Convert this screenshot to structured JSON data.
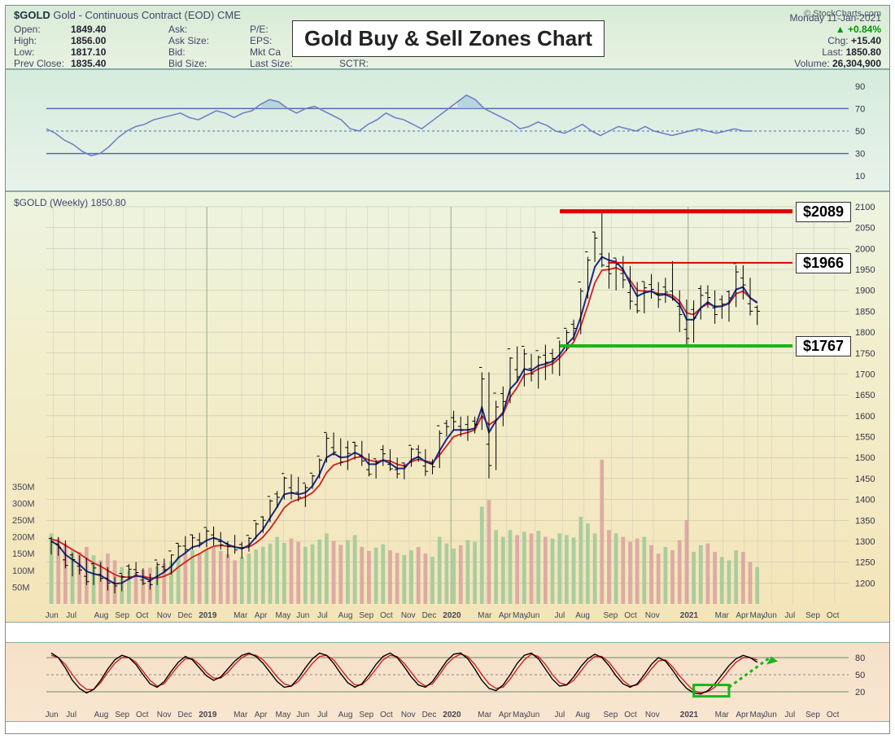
{
  "header": {
    "symbol": "$GOLD",
    "desc": "Gold - Continuous Contract (EOD)  CME",
    "credit": "© StockCharts.com",
    "date": "Monday  11-Jan-2021",
    "title": "Gold Buy & Sell Zones Chart",
    "open_lbl": "Open:",
    "open": "1849.40",
    "high_lbl": "High:",
    "high": "1856.00",
    "low_lbl": "Low:",
    "low": "1817.10",
    "prev_lbl": "Prev Close:",
    "prev": "1835.40",
    "ask_lbl": "Ask:",
    "asksz_lbl": "Ask Size:",
    "bid_lbl": "Bid:",
    "bidsz_lbl": "Bid Size:",
    "pe_lbl": "P/E:",
    "eps_lbl": "EPS:",
    "mktcap_lbl": "Mkt Ca",
    "lastsz_lbl": "Last Size:",
    "sctr_lbl": "SCTR:",
    "pct_arrow": "▲",
    "pct": "+0.84%",
    "chg_lbl": "Chg:",
    "chg": "+15.40",
    "last_lbl": "Last:",
    "last": "1850.80",
    "vol_lbl": "Volume:",
    "vol": "26,304,900"
  },
  "rsi": {
    "y_ticks": [
      10,
      30,
      50,
      70,
      90
    ],
    "upper_line": 70,
    "lower_line": 30,
    "mid_line": 50,
    "line_color": "#6a7cc8",
    "fill_color": "#9ec4d8",
    "values": [
      52,
      48,
      42,
      38,
      32,
      28,
      30,
      36,
      44,
      50,
      54,
      56,
      60,
      62,
      64,
      66,
      62,
      60,
      64,
      68,
      66,
      62,
      66,
      68,
      74,
      78,
      76,
      70,
      66,
      70,
      72,
      68,
      64,
      60,
      52,
      50,
      56,
      60,
      66,
      62,
      60,
      56,
      52,
      58,
      64,
      70,
      76,
      82,
      78,
      70,
      66,
      62,
      58,
      52,
      54,
      58,
      55,
      50,
      48,
      52,
      56,
      50,
      46,
      50,
      54,
      52,
      50,
      54,
      50,
      48,
      46,
      48,
      50,
      52,
      50,
      48,
      50,
      52,
      50,
      50
    ]
  },
  "price": {
    "subtitle": "$GOLD (Weekly) 1850.80",
    "y_min": 1150,
    "y_max": 2100,
    "y_step": 50,
    "vol_left_ticks": [
      50,
      100,
      150,
      200,
      250,
      300,
      350
    ],
    "vol_left_suffix": "M",
    "resist1": {
      "price": 2089,
      "color": "#e00000",
      "x1_pct": 64,
      "x2_pct": 93,
      "label": "$2089"
    },
    "resist2": {
      "price": 1966,
      "color": "#e00000",
      "x1_pct": 70,
      "x2_pct": 93,
      "label": "$1966"
    },
    "support": {
      "price": 1767,
      "color": "#1bb41b",
      "x1_pct": 64,
      "x2_pct": 93,
      "label": "$1767"
    },
    "ma_fast_color": "#1a2a8a",
    "ma_slow_color": "#d02020",
    "candle_color": "#000",
    "vol_up_color": "#9cc898",
    "vol_dn_color": "#d8a0a0",
    "ohlc": [
      [
        1310,
        1268,
        1298
      ],
      [
        1310,
        1265,
        1284
      ],
      [
        1302,
        1235,
        1242
      ],
      [
        1272,
        1216,
        1256
      ],
      [
        1266,
        1220,
        1231
      ],
      [
        1260,
        1195,
        1203
      ],
      [
        1245,
        1195,
        1236
      ],
      [
        1250,
        1203,
        1211
      ],
      [
        1238,
        1182,
        1200
      ],
      [
        1215,
        1175,
        1193
      ],
      [
        1220,
        1180,
        1215
      ],
      [
        1245,
        1208,
        1233
      ],
      [
        1250,
        1215,
        1225
      ],
      [
        1235,
        1195,
        1199
      ],
      [
        1222,
        1184,
        1196
      ],
      [
        1250,
        1195,
        1244
      ],
      [
        1258,
        1225,
        1232
      ],
      [
        1268,
        1220,
        1267
      ],
      [
        1295,
        1260,
        1288
      ],
      [
        1312,
        1270,
        1280
      ],
      [
        1316,
        1280,
        1308
      ],
      [
        1320,
        1285,
        1296
      ],
      [
        1330,
        1286,
        1324
      ],
      [
        1335,
        1290,
        1306
      ],
      [
        1322,
        1280,
        1291
      ],
      [
        1300,
        1260,
        1287
      ],
      [
        1315,
        1270,
        1279
      ],
      [
        1298,
        1258,
        1284
      ],
      [
        1310,
        1275,
        1307
      ],
      [
        1345,
        1305,
        1341
      ],
      [
        1360,
        1320,
        1350
      ],
      [
        1400,
        1345,
        1396
      ],
      [
        1420,
        1380,
        1405
      ],
      [
        1454,
        1400,
        1451
      ],
      [
        1460,
        1400,
        1416
      ],
      [
        1454,
        1395,
        1405
      ],
      [
        1436,
        1382,
        1428
      ],
      [
        1459,
        1425,
        1456
      ],
      [
        1498,
        1450,
        1494
      ],
      [
        1558,
        1488,
        1546
      ],
      [
        1560,
        1505,
        1513
      ],
      [
        1546,
        1480,
        1489
      ],
      [
        1540,
        1470,
        1510
      ],
      [
        1538,
        1495,
        1528
      ],
      [
        1540,
        1480,
        1492
      ],
      [
        1510,
        1455,
        1460
      ],
      [
        1495,
        1450,
        1488
      ],
      [
        1530,
        1480,
        1509
      ],
      [
        1520,
        1468,
        1473
      ],
      [
        1500,
        1450,
        1461
      ],
      [
        1488,
        1448,
        1479
      ],
      [
        1524,
        1478,
        1520
      ],
      [
        1530,
        1490,
        1512
      ],
      [
        1520,
        1456,
        1467
      ],
      [
        1496,
        1460,
        1478
      ],
      [
        1565,
        1475,
        1558
      ],
      [
        1590,
        1550,
        1574
      ],
      [
        1612,
        1565,
        1586
      ],
      [
        1598,
        1550,
        1565
      ],
      [
        1600,
        1540,
        1567
      ],
      [
        1598,
        1558,
        1579
      ],
      [
        1704,
        1566,
        1688
      ],
      [
        1704,
        1450,
        1481
      ],
      [
        1636,
        1470,
        1621
      ],
      [
        1670,
        1575,
        1634
      ],
      [
        1740,
        1630,
        1738
      ],
      [
        1766,
        1680,
        1693
      ],
      [
        1760,
        1670,
        1748
      ],
      [
        1748,
        1682,
        1700
      ],
      [
        1744,
        1665,
        1740
      ],
      [
        1770,
        1685,
        1728
      ],
      [
        1760,
        1700,
        1737
      ],
      [
        1780,
        1695,
        1769
      ],
      [
        1806,
        1755,
        1799
      ],
      [
        1830,
        1780,
        1809
      ],
      [
        1905,
        1795,
        1898
      ],
      [
        1980,
        1880,
        1972
      ],
      [
        2040,
        1968,
        2025
      ],
      [
        2089,
        1955,
        1960
      ],
      [
        1990,
        1904,
        1940
      ],
      [
        1976,
        1900,
        1962
      ],
      [
        1982,
        1905,
        1925
      ],
      [
        1958,
        1854,
        1874
      ],
      [
        1920,
        1845,
        1851
      ],
      [
        1920,
        1845,
        1906
      ],
      [
        1939,
        1880,
        1902
      ],
      [
        1920,
        1858,
        1878
      ],
      [
        1930,
        1870,
        1896
      ],
      [
        1970,
        1875,
        1879
      ],
      [
        1900,
        1800,
        1842
      ],
      [
        1878,
        1770,
        1785
      ],
      [
        1876,
        1775,
        1834
      ],
      [
        1912,
        1830,
        1888
      ],
      [
        1912,
        1858,
        1883
      ],
      [
        1900,
        1820,
        1842
      ],
      [
        1888,
        1832,
        1867
      ],
      [
        1900,
        1825,
        1882
      ],
      [
        1960,
        1860,
        1944
      ],
      [
        1960,
        1878,
        1913
      ],
      [
        1930,
        1840,
        1850
      ],
      [
        1864,
        1817,
        1850
      ]
    ],
    "ma_fast": [
      1300,
      1290,
      1268,
      1256,
      1244,
      1228,
      1222,
      1218,
      1208,
      1198,
      1200,
      1210,
      1218,
      1214,
      1206,
      1216,
      1226,
      1240,
      1260,
      1272,
      1286,
      1290,
      1302,
      1308,
      1302,
      1292,
      1286,
      1282,
      1290,
      1310,
      1328,
      1356,
      1382,
      1412,
      1416,
      1412,
      1416,
      1432,
      1460,
      1500,
      1510,
      1500,
      1502,
      1512,
      1504,
      1484,
      1484,
      1494,
      1486,
      1474,
      1474,
      1494,
      1502,
      1490,
      1484,
      1516,
      1544,
      1566,
      1566,
      1566,
      1570,
      1620,
      1560,
      1588,
      1608,
      1664,
      1682,
      1712,
      1708,
      1720,
      1724,
      1730,
      1746,
      1770,
      1788,
      1836,
      1896,
      1956,
      1980,
      1972,
      1968,
      1950,
      1916,
      1886,
      1894,
      1898,
      1888,
      1890,
      1882,
      1866,
      1830,
      1830,
      1858,
      1872,
      1860,
      1862,
      1870,
      1902,
      1908,
      1882,
      1870
    ],
    "ma_slow": [
      1305,
      1300,
      1290,
      1280,
      1270,
      1258,
      1248,
      1240,
      1230,
      1220,
      1214,
      1214,
      1216,
      1216,
      1212,
      1212,
      1216,
      1224,
      1238,
      1250,
      1262,
      1270,
      1280,
      1288,
      1290,
      1288,
      1286,
      1284,
      1286,
      1296,
      1310,
      1330,
      1354,
      1380,
      1394,
      1400,
      1406,
      1416,
      1434,
      1464,
      1482,
      1488,
      1492,
      1500,
      1502,
      1494,
      1490,
      1494,
      1492,
      1484,
      1480,
      1490,
      1496,
      1492,
      1488,
      1506,
      1528,
      1550,
      1556,
      1560,
      1566,
      1600,
      1578,
      1590,
      1604,
      1644,
      1668,
      1698,
      1702,
      1712,
      1718,
      1724,
      1738,
      1758,
      1776,
      1814,
      1864,
      1918,
      1948,
      1950,
      1954,
      1946,
      1924,
      1900,
      1898,
      1898,
      1892,
      1892,
      1888,
      1874,
      1846,
      1842,
      1858,
      1868,
      1862,
      1862,
      1868,
      1892,
      1898,
      1882,
      1872
    ],
    "volume": [
      210,
      195,
      180,
      162,
      155,
      170,
      145,
      130,
      150,
      130,
      110,
      100,
      95,
      102,
      108,
      112,
      120,
      128,
      140,
      150,
      160,
      150,
      162,
      172,
      158,
      148,
      130,
      140,
      150,
      162,
      170,
      180,
      200,
      182,
      195,
      185,
      170,
      178,
      192,
      210,
      188,
      176,
      190,
      205,
      170,
      158,
      168,
      178,
      160,
      152,
      146,
      160,
      170,
      150,
      140,
      200,
      180,
      165,
      175,
      190,
      185,
      290,
      310,
      220,
      200,
      220,
      205,
      215,
      210,
      218,
      200,
      195,
      210,
      205,
      198,
      260,
      240,
      210,
      430,
      220,
      210,
      200,
      185,
      195,
      200,
      175,
      150,
      170,
      160,
      190,
      250,
      155,
      175,
      180,
      155,
      140,
      130,
      160,
      155,
      125,
      110
    ]
  },
  "osc": {
    "y_ticks": [
      20,
      50,
      80
    ],
    "k_color": "#000",
    "d_color": "#d02020",
    "box_color": "#1bb41b",
    "k": [
      88,
      80,
      62,
      40,
      26,
      18,
      24,
      40,
      60,
      76,
      84,
      80,
      68,
      50,
      34,
      28,
      38,
      56,
      72,
      82,
      76,
      62,
      48,
      40,
      46,
      60,
      74,
      84,
      88,
      82,
      70,
      54,
      38,
      28,
      30,
      44,
      62,
      78,
      88,
      84,
      70,
      52,
      36,
      28,
      34,
      50,
      68,
      82,
      88,
      80,
      64,
      46,
      32,
      28,
      38,
      56,
      74,
      86,
      88,
      78,
      60,
      40,
      26,
      22,
      32,
      50,
      70,
      84,
      88,
      78,
      60,
      42,
      30,
      32,
      46,
      64,
      78,
      86,
      80,
      66,
      48,
      34,
      28,
      34,
      50,
      68,
      80,
      74,
      58,
      40,
      26,
      18,
      16,
      22,
      34,
      50,
      66,
      78,
      84,
      80,
      72
    ],
    "d": [
      84,
      80,
      68,
      50,
      34,
      24,
      24,
      36,
      54,
      70,
      80,
      80,
      72,
      56,
      40,
      30,
      34,
      50,
      66,
      78,
      78,
      68,
      54,
      44,
      44,
      54,
      68,
      80,
      86,
      84,
      76,
      62,
      46,
      34,
      30,
      38,
      54,
      70,
      82,
      84,
      76,
      60,
      44,
      32,
      32,
      44,
      60,
      76,
      84,
      82,
      70,
      54,
      38,
      30,
      34,
      50,
      68,
      80,
      86,
      82,
      68,
      50,
      34,
      26,
      28,
      42,
      60,
      76,
      86,
      82,
      68,
      50,
      36,
      32,
      40,
      56,
      72,
      82,
      82,
      72,
      56,
      40,
      30,
      32,
      44,
      60,
      74,
      76,
      64,
      48,
      34,
      22,
      18,
      20,
      28,
      42,
      58,
      72,
      80,
      80,
      76
    ]
  },
  "xaxis": {
    "labels": [
      {
        "p": 1,
        "t": "Jun"
      },
      {
        "p": 4,
        "t": "Jul"
      },
      {
        "p": 8,
        "t": "Aug"
      },
      {
        "p": 11,
        "t": "Sep"
      },
      {
        "p": 14,
        "t": "Oct"
      },
      {
        "p": 17,
        "t": "Nov"
      },
      {
        "p": 20,
        "t": "Dec"
      },
      {
        "p": 23,
        "t": "2019",
        "b": 1
      },
      {
        "p": 28,
        "t": "Mar"
      },
      {
        "p": 31,
        "t": "Apr"
      },
      {
        "p": 34,
        "t": "May"
      },
      {
        "p": 37,
        "t": "Jun"
      },
      {
        "p": 40,
        "t": "Jul"
      },
      {
        "p": 43,
        "t": "Aug"
      },
      {
        "p": 46,
        "t": "Sep"
      },
      {
        "p": 49,
        "t": "Oct"
      },
      {
        "p": 52,
        "t": "Nov"
      },
      {
        "p": 55,
        "t": "Dec"
      },
      {
        "p": 58,
        "t": "2020",
        "b": 1
      },
      {
        "p": 63,
        "t": "Mar"
      },
      {
        "p": 66,
        "t": "Apr"
      },
      {
        "p": 68,
        "t": "May"
      },
      {
        "p": 70,
        "t": "Jun"
      },
      {
        "p": 74,
        "t": "Jul"
      },
      {
        "p": 77,
        "t": "Aug"
      },
      {
        "p": 81,
        "t": "Sep"
      },
      {
        "p": 84,
        "t": "Oct"
      },
      {
        "p": 87,
        "t": "Nov"
      },
      {
        "p": 92,
        "t": "2021",
        "b": 1
      },
      {
        "p": 97,
        "t": "Mar"
      },
      {
        "p": 100,
        "t": "Apr"
      },
      {
        "p": 102,
        "t": "May"
      },
      {
        "p": 104,
        "t": "Jun"
      },
      {
        "p": 107,
        "t": "Jul"
      },
      {
        "p": 110,
        "t": "Sep"
      },
      {
        "p": 113,
        "t": "Oct"
      }
    ],
    "n": 115
  }
}
